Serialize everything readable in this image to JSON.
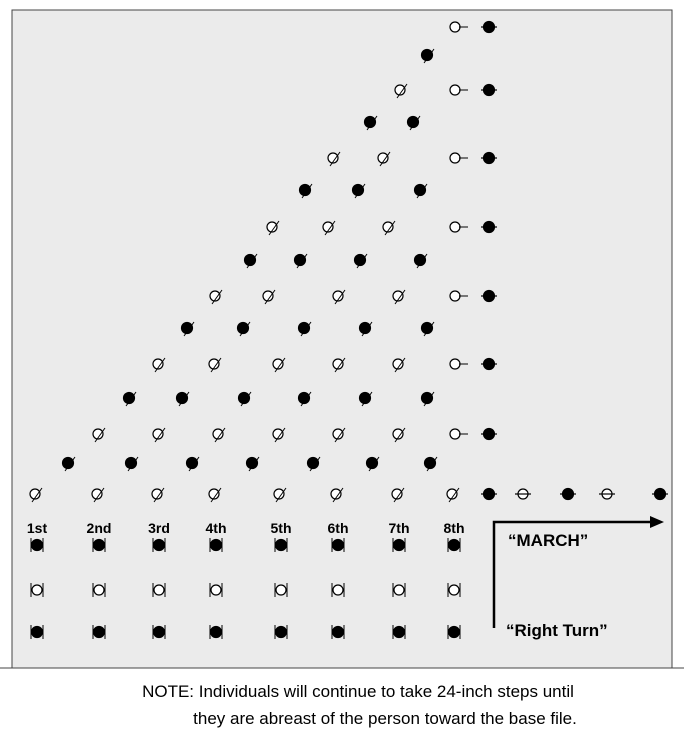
{
  "files": [
    "1st",
    "2nd",
    "3rd",
    "4th",
    "5th",
    "6th",
    "7th",
    "8th"
  ],
  "commands": {
    "march": "“MARCH”",
    "right_turn": "“Right Turn”"
  },
  "note": {
    "line1": "NOTE: Individuals will continue to take 24-inch steps until",
    "line2": "they are abreast of the person toward the base file."
  }
}
